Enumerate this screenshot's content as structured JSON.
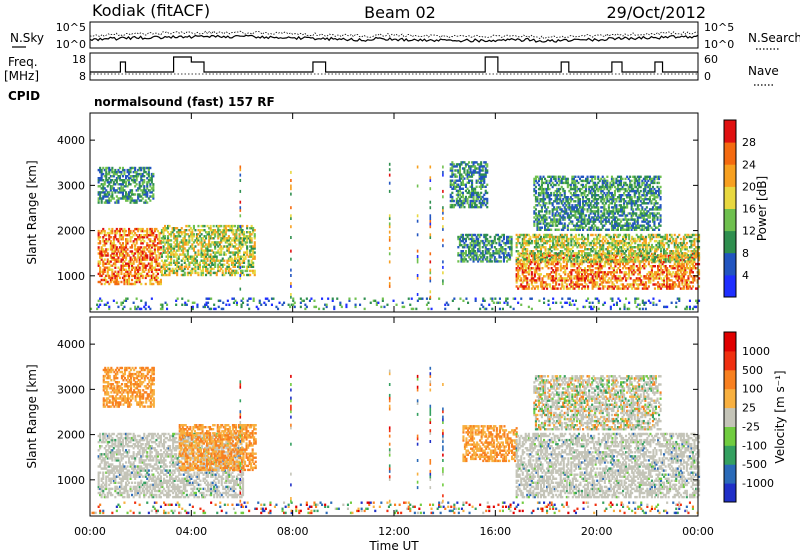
{
  "header": {
    "station": "Kodiak (fitACF)",
    "beam": "Beam 02",
    "date": "29/Oct/2012"
  },
  "panel_labels": {
    "nsky": "N.Sky",
    "nsearch": "N.Search",
    "freq_line1": "Freq.",
    "freq_line2": "[MHz]",
    "nave": "Nave",
    "cpid": "CPID",
    "cpid_value": "normalsound (fast) 157 RF"
  },
  "noise_ticks": {
    "left_top": "10^5",
    "left_bottom": "10^0",
    "right_top": "10^5",
    "right_bottom": "10^0"
  },
  "freq_ticks": {
    "left_top": "18",
    "left_bottom": "8",
    "right_top": "60",
    "right_bottom": "0"
  },
  "chart_data": [
    {
      "type": "heatmap",
      "name": "power",
      "ylabel": "Slant Range [km]",
      "xlabel": "Time UT",
      "x_ticks": [
        "00:00",
        "04:00",
        "08:00",
        "12:00",
        "16:00",
        "20:00",
        "00:00"
      ],
      "y_ticks": [
        1000,
        2000,
        3000,
        4000
      ],
      "ylim": [
        200,
        4600
      ],
      "xlim_hours": [
        0,
        24
      ],
      "colorbar": {
        "label": "Power [dB]",
        "ticks": [
          "4",
          "8",
          "12",
          "16",
          "20",
          "24",
          "28"
        ],
        "colors": [
          "#1f2fff",
          "#2255c0",
          "#2f8f4f",
          "#6fc04f",
          "#e8d840",
          "#f7a020",
          "#f46a10",
          "#e01010"
        ]
      },
      "regions": [
        {
          "t0": 0.3,
          "t1": 2.8,
          "r0": 800,
          "r1": 2050,
          "palette": "hot"
        },
        {
          "t0": 2.8,
          "t1": 6.5,
          "r0": 1000,
          "r1": 2100,
          "palette": "warm"
        },
        {
          "t0": 0.3,
          "t1": 2.5,
          "r0": 2600,
          "r1": 3400,
          "palette": "cool"
        },
        {
          "t0": 14.5,
          "t1": 16.6,
          "r0": 1300,
          "r1": 1900,
          "palette": "cool"
        },
        {
          "t0": 14.2,
          "t1": 15.7,
          "r0": 2500,
          "r1": 3500,
          "palette": "cool"
        },
        {
          "t0": 16.8,
          "t1": 24,
          "r0": 700,
          "r1": 1500,
          "palette": "hot"
        },
        {
          "t0": 16.8,
          "t1": 24,
          "r0": 1300,
          "r1": 1900,
          "palette": "warm"
        },
        {
          "t0": 17.5,
          "t1": 22.5,
          "r0": 2000,
          "r1": 3200,
          "palette": "cool"
        },
        {
          "t0": 0,
          "t1": 24,
          "r0": 250,
          "r1": 500,
          "palette": "sparse"
        }
      ]
    },
    {
      "type": "heatmap",
      "name": "velocity",
      "ylabel": "Slant Range [km]",
      "xlabel": "Time UT",
      "x_ticks": [
        "00:00",
        "04:00",
        "08:00",
        "12:00",
        "16:00",
        "20:00",
        "00:00"
      ],
      "y_ticks": [
        1000,
        2000,
        3000,
        4000
      ],
      "ylim": [
        200,
        4600
      ],
      "xlim_hours": [
        0,
        24
      ],
      "colorbar": {
        "label": "Velocity [m s⁻¹]",
        "ticks": [
          "1000",
          "500",
          "100",
          "25",
          "-25",
          "-100",
          "-500",
          "-1000"
        ],
        "colors": [
          "#2030c8",
          "#2a6ab8",
          "#34a060",
          "#70cc40",
          "#c4c4b8",
          "#f8b040",
          "#f88020",
          "#f03010",
          "#e00000"
        ]
      },
      "regions": [
        {
          "t0": 0.3,
          "t1": 6.0,
          "r0": 600,
          "r1": 2000,
          "palette": "grey"
        },
        {
          "t0": 3.5,
          "t1": 6.5,
          "r0": 1200,
          "r1": 2200,
          "palette": "orange"
        },
        {
          "t0": 0.5,
          "t1": 2.5,
          "r0": 2600,
          "r1": 3500,
          "palette": "orange"
        },
        {
          "t0": 14.7,
          "t1": 16.8,
          "r0": 1400,
          "r1": 2200,
          "palette": "orange"
        },
        {
          "t0": 16.8,
          "t1": 24,
          "r0": 600,
          "r1": 2000,
          "palette": "grey"
        },
        {
          "t0": 17.5,
          "t1": 22.5,
          "r0": 2100,
          "r1": 3300,
          "palette": "mixgo"
        },
        {
          "t0": 0,
          "t1": 24,
          "r0": 250,
          "r1": 500,
          "palette": "sparse"
        }
      ]
    }
  ]
}
